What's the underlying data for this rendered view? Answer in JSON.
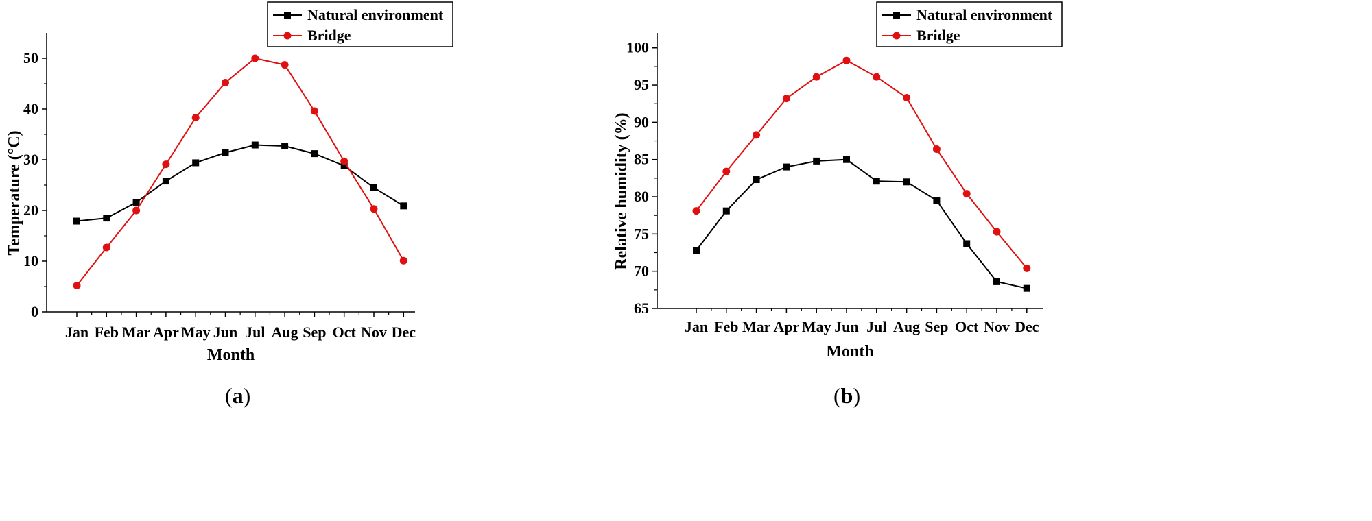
{
  "chart_data": [
    {
      "type": "line",
      "panel_label": "a",
      "categories": [
        "Jan",
        "Feb",
        "Mar",
        "Apr",
        "May",
        "Jun",
        "Jul",
        "Aug",
        "Sep",
        "Oct",
        "Nov",
        "Dec"
      ],
      "series": [
        {
          "name": "Natural environment",
          "color": "#000000",
          "marker": "square",
          "values": [
            17.9,
            18.5,
            21.6,
            25.8,
            29.4,
            31.4,
            32.9,
            32.7,
            31.2,
            28.8,
            24.5,
            20.9
          ]
        },
        {
          "name": "Bridge",
          "color": "#e01010",
          "marker": "circle",
          "values": [
            5.2,
            12.7,
            20.0,
            29.1,
            38.3,
            45.2,
            50.0,
            48.7,
            39.6,
            29.7,
            20.3,
            10.1
          ]
        }
      ],
      "xlabel": "Month",
      "ylabel": "Temperature (°C)",
      "ylim": [
        0,
        55
      ],
      "yticks": [
        0,
        10,
        20,
        30,
        40,
        50
      ],
      "grid": false,
      "legend": "top-right"
    },
    {
      "type": "line",
      "panel_label": "b",
      "categories": [
        "Jan",
        "Feb",
        "Mar",
        "Apr",
        "May",
        "Jun",
        "Jul",
        "Aug",
        "Sep",
        "Oct",
        "Nov",
        "Dec"
      ],
      "series": [
        {
          "name": "Natural environment",
          "color": "#000000",
          "marker": "square",
          "values": [
            72.8,
            78.1,
            82.3,
            84.0,
            84.8,
            85.0,
            82.1,
            82.0,
            79.5,
            73.7,
            68.6,
            67.7
          ]
        },
        {
          "name": "Bridge",
          "color": "#e01010",
          "marker": "circle",
          "values": [
            78.1,
            83.4,
            88.3,
            93.2,
            96.1,
            98.3,
            96.1,
            93.3,
            86.4,
            80.4,
            75.3,
            70.4
          ]
        }
      ],
      "xlabel": "Month",
      "ylabel": "Relative humidity (%)",
      "ylim": [
        65,
        102
      ],
      "yticks": [
        65,
        70,
        75,
        80,
        85,
        90,
        95,
        100
      ],
      "grid": false,
      "legend": "top-right"
    }
  ]
}
